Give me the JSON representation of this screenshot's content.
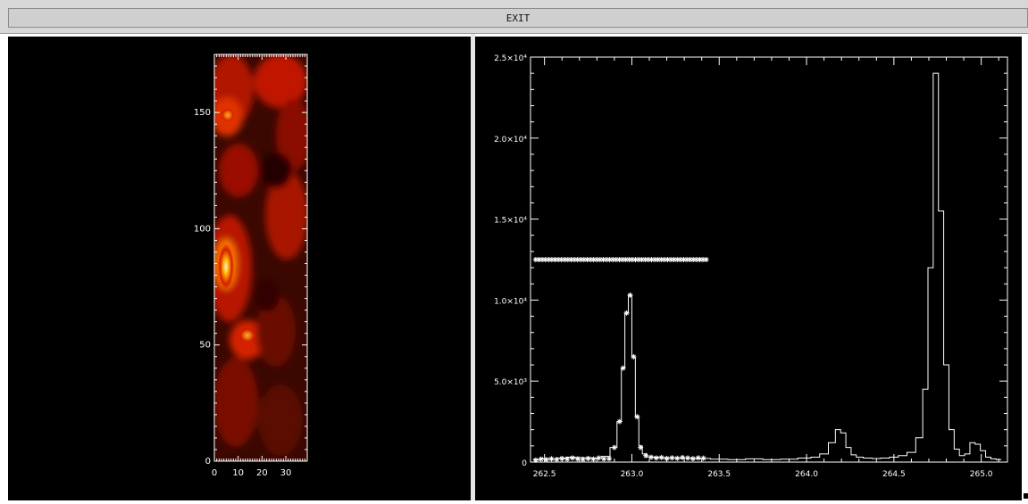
{
  "toolbar": {
    "exit_label": "EXIT"
  },
  "image_panel": {
    "colormap": "red-temperature",
    "y_ticks": [
      "0",
      "50",
      "100",
      "150"
    ],
    "x_ticks": [
      "0",
      "10",
      "20",
      "30"
    ]
  },
  "chart_data": {
    "type": "line",
    "title": "",
    "xlabel": "",
    "ylabel": "",
    "xlim": [
      262.42,
      265.15
    ],
    "ylim": [
      0,
      25000
    ],
    "x_ticks": [
      "262.5",
      "263.0",
      "263.5",
      "264.0",
      "264.5",
      "265.0"
    ],
    "y_ticks": [
      "0",
      "5.0×10³",
      "1.0×10⁴",
      "1.5×10⁴",
      "2.0×10⁴",
      "2.5×10⁴"
    ],
    "series": [
      {
        "style": "histogram",
        "color": "#ffffff",
        "x": [
          262.45,
          262.5,
          262.55,
          262.6,
          262.65,
          262.7,
          262.75,
          262.8,
          262.85,
          262.9,
          262.93,
          262.95,
          262.97,
          262.99,
          263.01,
          263.03,
          263.05,
          263.07,
          263.1,
          263.15,
          263.2,
          263.3,
          263.4,
          263.5,
          263.6,
          263.7,
          263.8,
          263.9,
          264.0,
          264.05,
          264.1,
          264.15,
          264.18,
          264.21,
          264.24,
          264.27,
          264.3,
          264.35,
          264.4,
          264.45,
          264.5,
          264.55,
          264.6,
          264.65,
          264.68,
          264.71,
          264.74,
          264.77,
          264.8,
          264.83,
          264.86,
          264.89,
          264.92,
          264.95,
          264.98,
          265.01,
          265.04,
          265.07,
          265.1
        ],
        "y": [
          150,
          220,
          180,
          250,
          300,
          280,
          260,
          250,
          350,
          900,
          2500,
          5800,
          9200,
          10300,
          6500,
          2800,
          1000,
          500,
          320,
          300,
          260,
          250,
          220,
          180,
          150,
          200,
          150,
          180,
          250,
          300,
          500,
          1200,
          2000,
          1800,
          900,
          450,
          300,
          250,
          220,
          250,
          300,
          400,
          600,
          1500,
          4500,
          12000,
          24000,
          15500,
          6000,
          2000,
          800,
          400,
          500,
          1200,
          1100,
          700,
          300,
          200,
          150
        ]
      },
      {
        "style": "asterisk-markers",
        "color": "#ffffff",
        "x": [
          262.45,
          262.48,
          262.51,
          262.54,
          262.57,
          262.6,
          262.63,
          262.66,
          262.69,
          262.72,
          262.75,
          262.78,
          262.81,
          262.84,
          262.87,
          262.9,
          262.93,
          262.95,
          262.97,
          262.99,
          263.01,
          263.03,
          263.05,
          263.08,
          263.11,
          263.14,
          263.17,
          263.2,
          263.23,
          263.26,
          263.29,
          263.32,
          263.35,
          263.38,
          263.41
        ],
        "y": [
          120,
          180,
          150,
          200,
          160,
          220,
          180,
          250,
          200,
          160,
          220,
          180,
          250,
          200,
          210,
          900,
          2500,
          5800,
          9200,
          10300,
          6500,
          2800,
          900,
          400,
          300,
          250,
          280,
          220,
          260,
          230,
          280,
          250,
          210,
          260,
          240
        ]
      },
      {
        "style": "asterisk-line",
        "color": "#ffffff",
        "x_start": 262.45,
        "x_end": 263.44,
        "y": 12500
      }
    ]
  }
}
